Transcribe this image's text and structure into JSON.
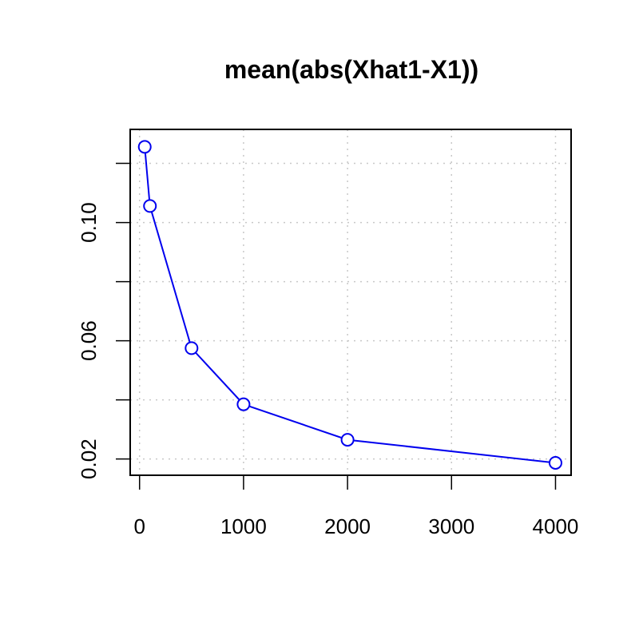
{
  "chart_data": {
    "type": "line",
    "title": "mean(abs(Xhat1-X1))",
    "xlabel": "",
    "ylabel": "",
    "x": [
      50,
      100,
      500,
      1000,
      2000,
      4000
    ],
    "series": [
      {
        "name": "mean(abs(Xhat1-X1))",
        "values": [
          0.1256,
          0.1056,
          0.0575,
          0.0385,
          0.0265,
          0.0187
        ]
      }
    ],
    "xlim": [
      -90,
      4150
    ],
    "ylim": [
      0.0145,
      0.1315
    ],
    "xticks": [
      0,
      1000,
      2000,
      3000,
      4000
    ],
    "xtick_labels": [
      "0",
      "1000",
      "2000",
      "3000",
      "4000"
    ],
    "yticks": [
      0.02,
      0.04,
      0.06,
      0.08,
      0.1,
      0.12
    ],
    "ytick_labels": [
      "0.02",
      "",
      "0.06",
      "",
      "0.10",
      ""
    ],
    "grid": true,
    "line_color": "#0000ee",
    "marker": "open-circle"
  }
}
